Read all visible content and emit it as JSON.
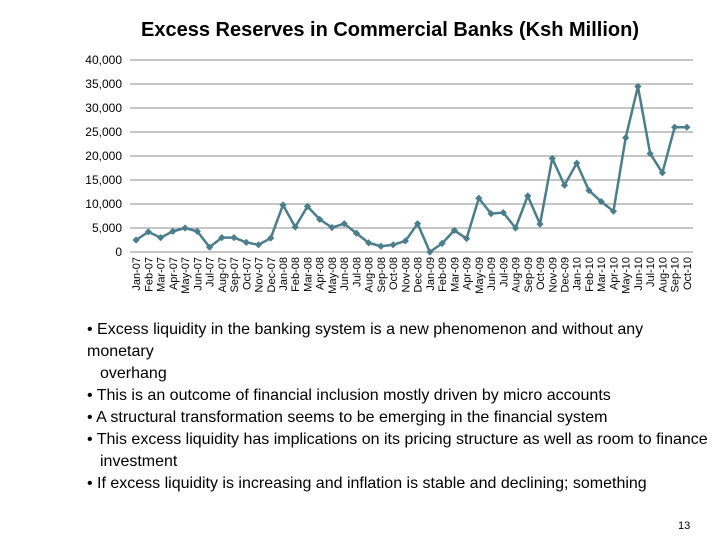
{
  "chart_data": {
    "type": "line",
    "title": "Excess Reserves in Commercial Banks (Ksh Million)",
    "xlabel": "",
    "ylabel": "",
    "ylim": [
      0,
      40000
    ],
    "yticks": [
      "0",
      "5,000",
      "10,000",
      "15,000",
      "20,000",
      "25,000",
      "30,000",
      "35,000",
      "40,000"
    ],
    "grid": true,
    "legend": "none",
    "line_color": "#4a7e8c",
    "categories": [
      "Jan-07",
      "Feb-07",
      "Mar-07",
      "Apr-07",
      "May-07",
      "Jun-07",
      "Jul-07",
      "Aug-07",
      "Sep-07",
      "Oct-07",
      "Nov-07",
      "Dec-07",
      "Jan-08",
      "Feb-08",
      "Mar-08",
      "Apr-08",
      "May-08",
      "Jun-08",
      "Jul-08",
      "Aug-08",
      "Sep-08",
      "Oct-08",
      "Nov-08",
      "Dec-08",
      "Jan-09",
      "Feb-09",
      "Mar-09",
      "Apr-09",
      "May-09",
      "Jun-09",
      "Jul-09",
      "Aug-09",
      "Sep-09",
      "Oct-09",
      "Nov-09",
      "Dec-09",
      "Jan-10",
      "Feb-10",
      "Mar-10",
      "Apr-10",
      "May-10",
      "Jun-10",
      "Jul-10",
      "Aug-10",
      "Sep-10",
      "Oct-10"
    ],
    "values": [
      2500,
      4200,
      3000,
      4300,
      5000,
      4300,
      1000,
      3000,
      3000,
      2000,
      1500,
      2900,
      9800,
      5200,
      9500,
      6800,
      5100,
      5900,
      3900,
      1900,
      1200,
      1500,
      2300,
      5900,
      0,
      1800,
      4500,
      2800,
      11200,
      8000,
      8200,
      5000,
      11700,
      5800,
      19500,
      13900,
      18500,
      12800,
      10500,
      8500,
      23800,
      34500,
      20500,
      16500,
      26000,
      26000
    ]
  },
  "bullets": [
    {
      "text": "• Excess liquidity in the banking system is a new phenomenon and without any monetary",
      "cont": "overhang"
    },
    {
      "text": "• This is an outcome of financial inclusion mostly driven by micro accounts"
    },
    {
      "text": "•  A structural transformation seems to be emerging in the financial system"
    },
    {
      "text": "•  This excess liquidity has implications on its pricing structure as well as room to finance",
      "cont": "investment"
    },
    {
      "text": "•    If  excess  liquidity  is  increasing  and  inflation  is  stable  and  declining; something",
      "justify": true
    }
  ],
  "page_number": "13"
}
